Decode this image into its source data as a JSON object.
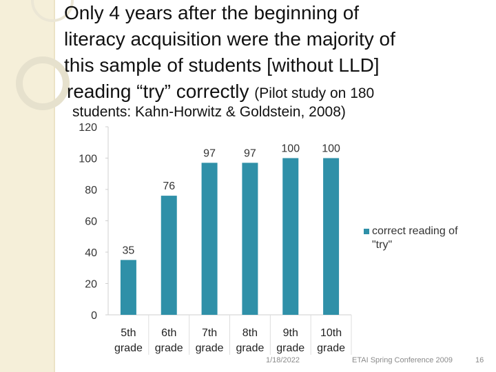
{
  "slide": {
    "title_lines": [
      "Only 4 years after the beginning of",
      "literacy acquisition were the majority of",
      "this sample of students [without LLD]"
    ],
    "title_last_main": "reading “try” correctly",
    "title_last_small": "(Pilot study on 180",
    "subtitle": "students: Kahn-Horwitz & Goldstein, 2008)",
    "footer": {
      "date": "1/18/2022",
      "conference": "ETAI Spring Conference 2009",
      "page": "16"
    }
  },
  "colors": {
    "bar": "#2f90a8",
    "background": "#ffffff",
    "accent_band": "#f5efd9"
  },
  "chart_data": {
    "type": "bar",
    "categories": [
      [
        "5th",
        "grade"
      ],
      [
        "6th",
        "grade"
      ],
      [
        "7th",
        "grade"
      ],
      [
        "8th",
        "grade"
      ],
      [
        "9th",
        "grade"
      ],
      [
        "10th",
        "grade"
      ]
    ],
    "series": [
      {
        "name": "correct reading of \"try\"",
        "values": [
          35,
          76,
          97,
          97,
          100,
          100
        ]
      }
    ],
    "data_labels": [
      "35",
      "76",
      "97",
      "97",
      "100",
      "100"
    ],
    "y_ticks": [
      0,
      20,
      40,
      60,
      80,
      100,
      120
    ],
    "ylim": [
      0,
      120
    ],
    "grid": false,
    "legend_position": "right",
    "legend_label": "correct reading of \"try\""
  }
}
